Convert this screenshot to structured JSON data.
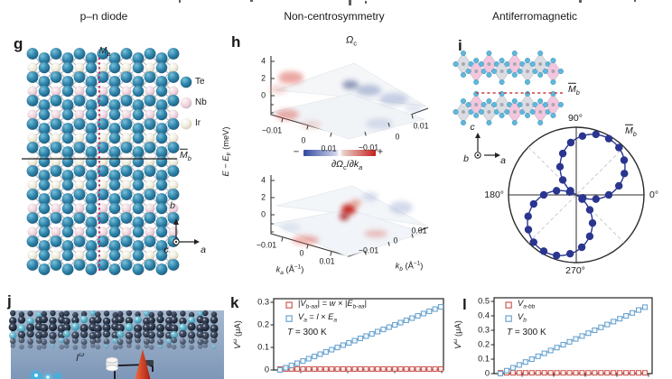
{
  "ui": {
    "headers": [
      "p–n diode",
      "Non-centrosymmetry",
      "Antiferromagnetic"
    ],
    "panel_letters": {
      "g": "g",
      "h": "h",
      "i": "i",
      "j": "j",
      "k": "k",
      "l": "l"
    },
    "colors": {
      "te": "#2f86ad",
      "nb": "#eed5de",
      "ir": "#f0ecdc",
      "mirror_a_line": "#c2266b",
      "mirror_b_line": "#222222",
      "afm_mirror_line": "#c63d3d",
      "navy": "#2a358f",
      "series_red": "#cf5a55",
      "series_blue": "#6aa3cf",
      "colorbar_blue": "#33499f",
      "colorbar_red": "#c5201d",
      "poly_gray": "#d6d6de",
      "poly_pink": "#f2bcd8",
      "atom_cyan": "#5fb8dc"
    },
    "g": {
      "mirror_a": [
        {
          "t": "M",
          "i": 1
        },
        {
          "t": "a",
          "i": 1,
          "sub": 1
        }
      ],
      "mirror_b": [
        {
          "t": "M",
          "i": 1,
          "ov": 1
        },
        {
          "t": "b",
          "i": 1,
          "sub": 1
        }
      ],
      "legend": [
        {
          "label": "Te",
          "kind": "te"
        },
        {
          "label": "Nb",
          "kind": "nb"
        },
        {
          "label": "Ir",
          "kind": "ir"
        }
      ],
      "axis_up": "b",
      "axis_right": "a",
      "axis_out": "c"
    },
    "h": {
      "title": [
        {
          "t": "Ω",
          "i": 1
        },
        {
          "t": "c",
          "sub": 1
        }
      ],
      "deriv_title": [
        {
          "t": "∂Ω",
          "i": 1
        },
        {
          "t": "c",
          "sub": 1
        },
        {
          "t": "/∂"
        },
        {
          "t": "k",
          "i": 1
        },
        {
          "t": "a",
          "i": 1,
          "sub": 1
        }
      ],
      "ylabel": [
        {
          "t": "E",
          "i": 1
        },
        {
          "t": " − "
        },
        {
          "t": "E",
          "i": 1
        },
        {
          "t": "F",
          "sub": 1
        },
        {
          "t": " (meV)"
        }
      ],
      "ka_label": [
        {
          "t": "k",
          "i": 1
        },
        {
          "t": "a",
          "i": 1,
          "sub": 1
        },
        {
          "t": " (Å"
        },
        {
          "t": "−1",
          "sup": 1
        },
        {
          "t": ")"
        }
      ],
      "kb_label": [
        {
          "t": "k",
          "i": 1
        },
        {
          "t": "b",
          "i": 1,
          "sub": 1
        },
        {
          "t": " (Å"
        },
        {
          "t": "−1",
          "sup": 1
        },
        {
          "t": ")"
        }
      ],
      "cbar_minus": "−",
      "cbar_plus": "+"
    },
    "i": {
      "mirror_b": [
        {
          "t": "M",
          "i": 1,
          "ov": 1
        },
        {
          "t": "b",
          "i": 1,
          "sub": 1
        }
      ],
      "axis_up": "c",
      "axis_right": "a",
      "axis_out": "b"
    },
    "j": {
      "current": [
        {
          "t": "I",
          "i": 1
        },
        {
          "t": "ω",
          "i": 1,
          "sup": 1
        }
      ]
    },
    "k": {
      "ylabel": [
        {
          "t": "V",
          "i": 1
        },
        {
          "t": "ω",
          "i": 1,
          "sup": 1
        },
        {
          "t": " (μA)"
        }
      ],
      "legend1": [
        {
          "t": "|"
        },
        {
          "t": "V",
          "i": 1
        },
        {
          "t": "b-aa",
          "i": 1,
          "sub": 1
        },
        {
          "t": "| = "
        },
        {
          "t": "w",
          "i": 1
        },
        {
          "t": " × |"
        },
        {
          "t": "E",
          "i": 1
        },
        {
          "t": "b-aa",
          "i": 1,
          "sub": 1
        },
        {
          "t": "|"
        }
      ],
      "legend2": [
        {
          "t": "V",
          "i": 1
        },
        {
          "t": "a",
          "i": 1,
          "sub": 1
        },
        {
          "t": " = "
        },
        {
          "t": "l",
          "i": 1
        },
        {
          "t": " × "
        },
        {
          "t": "E",
          "i": 1
        },
        {
          "t": "a",
          "i": 1,
          "sub": 1
        }
      ],
      "temp": [
        {
          "t": "T",
          "i": 1
        },
        {
          "t": " = 300 K"
        }
      ]
    },
    "l": {
      "ylabel": [
        {
          "t": "V",
          "i": 1
        },
        {
          "t": "ω",
          "i": 1,
          "sup": 1
        },
        {
          "t": " (μA)"
        }
      ],
      "legend1": [
        {
          "t": "V",
          "i": 1
        },
        {
          "t": "a-bb",
          "i": 1,
          "sub": 1
        }
      ],
      "legend2": [
        {
          "t": "V",
          "i": 1
        },
        {
          "t": "b",
          "i": 1,
          "sub": 1
        }
      ],
      "temp": [
        {
          "t": "T",
          "i": 1
        },
        {
          "t": " = 300 K"
        }
      ]
    }
  },
  "chart_data": [
    {
      "id": "h_top",
      "type": "heatmap",
      "title": "Ωc",
      "description": "3D Berry-curvature surface over the ka–kb plane, diverging blue-white-red colormap",
      "z_axis": {
        "label": "E − EF (meV)",
        "ticks": [
          "4",
          "2",
          "0"
        ]
      },
      "ka_ticks": [
        "−0.01",
        "0",
        "0.01"
      ],
      "kb_ticks": [
        "−0.01",
        "0",
        "0.01"
      ],
      "colorbar": {
        "min_label": "−",
        "max_label": "+"
      }
    },
    {
      "id": "h_bottom",
      "type": "heatmap",
      "title": "∂Ωc/∂ka",
      "description": "3D surface of Berry-curvature derivative, red hotspot at zone center",
      "xlabel": "ka (Å−1)",
      "ylabel": "kb (Å−1)",
      "z_axis": {
        "ticks": [
          "4",
          "2",
          "0"
        ]
      },
      "ka_ticks": [
        "−0.01",
        "0",
        "0.01"
      ],
      "kb_ticks": [
        "−0.01",
        "0",
        "0.01"
      ]
    },
    {
      "id": "i_polar",
      "type": "line",
      "polar": true,
      "r_max": 1,
      "lobe_axis_deg": 60,
      "angle_labels": [
        "90°",
        "0°",
        "180°",
        "270°"
      ],
      "annotation": "M̄b",
      "points": [
        [
          0,
          0.5
        ],
        [
          12,
          0.67
        ],
        [
          24,
          0.81
        ],
        [
          36,
          0.91
        ],
        [
          48,
          0.98
        ],
        [
          60,
          1.0
        ],
        [
          72,
          0.98
        ],
        [
          84,
          0.91
        ],
        [
          96,
          0.81
        ],
        [
          108,
          0.67
        ],
        [
          120,
          0.5
        ],
        [
          132,
          0.31
        ],
        [
          144,
          0.11
        ],
        [
          156,
          0.11
        ],
        [
          168,
          0.31
        ],
        [
          180,
          0.5
        ],
        [
          192,
          0.67
        ],
        [
          204,
          0.81
        ],
        [
          216,
          0.91
        ],
        [
          228,
          0.98
        ],
        [
          240,
          1.0
        ],
        [
          252,
          0.98
        ],
        [
          264,
          0.91
        ],
        [
          276,
          0.81
        ],
        [
          288,
          0.67
        ],
        [
          300,
          0.5
        ],
        [
          312,
          0.31
        ],
        [
          324,
          0.11
        ],
        [
          336,
          0.11
        ],
        [
          348,
          0.31
        ]
      ]
    },
    {
      "id": "k",
      "type": "scatter",
      "ylabel": "Vω (μA)",
      "ylim": [
        0,
        0.3
      ],
      "yticks": [
        "0.3",
        "0.2",
        "0.1",
        "0"
      ],
      "annotation": "T = 300 K",
      "x_axis_labels_visible": false,
      "series": [
        {
          "name": "|Vb-aa| = w × |Eb-aa|",
          "color": "#cf5a55",
          "marker": "open-square",
          "values": [
            0.004,
            0.004,
            0.004,
            0.004,
            0.004,
            0.004,
            0.004,
            0.004,
            0.004,
            0.004,
            0.004,
            0.004,
            0.004,
            0.004,
            0.004,
            0.004,
            0.004,
            0.004,
            0.004,
            0.004,
            0.004,
            0.004,
            0.004,
            0.004,
            0.004,
            0.004,
            0.004,
            0.004,
            0.004
          ]
        },
        {
          "name": "Va = l × Ea",
          "color": "#6aa3cf",
          "marker": "open-square",
          "values": [
            0,
            0.01,
            0.02,
            0.03,
            0.04,
            0.05,
            0.06,
            0.07,
            0.08,
            0.09,
            0.1,
            0.11,
            0.12,
            0.13,
            0.14,
            0.15,
            0.16,
            0.17,
            0.18,
            0.19,
            0.2,
            0.21,
            0.22,
            0.23,
            0.24,
            0.25,
            0.26,
            0.27,
            0.28
          ]
        }
      ]
    },
    {
      "id": "l",
      "type": "scatter",
      "ylabel": "Vω (μA)",
      "ylim": [
        0,
        0.5
      ],
      "yticks": [
        "0.5",
        "0.4",
        "0.3",
        "0.2",
        "0.1",
        "0"
      ],
      "annotation": "T = 300 K",
      "x_axis_labels_visible": false,
      "series": [
        {
          "name": "Va-bb",
          "color": "#cf5a55",
          "marker": "open-square",
          "values": [
            0.005,
            0.005,
            0.005,
            0.005,
            0.005,
            0.005,
            0.005,
            0.005,
            0.005,
            0.005,
            0.005,
            0.005,
            0.005,
            0.005,
            0.005,
            0.005,
            0.005,
            0.005,
            0.005,
            0.005,
            0.005,
            0.005,
            0.005,
            0.005
          ]
        },
        {
          "name": "Vb",
          "color": "#6aa3cf",
          "marker": "open-square",
          "values": [
            0,
            0.02,
            0.04,
            0.06,
            0.08,
            0.1,
            0.12,
            0.14,
            0.16,
            0.18,
            0.2,
            0.22,
            0.24,
            0.26,
            0.28,
            0.3,
            0.32,
            0.34,
            0.36,
            0.38,
            0.4,
            0.42,
            0.44,
            0.46
          ]
        }
      ]
    }
  ]
}
